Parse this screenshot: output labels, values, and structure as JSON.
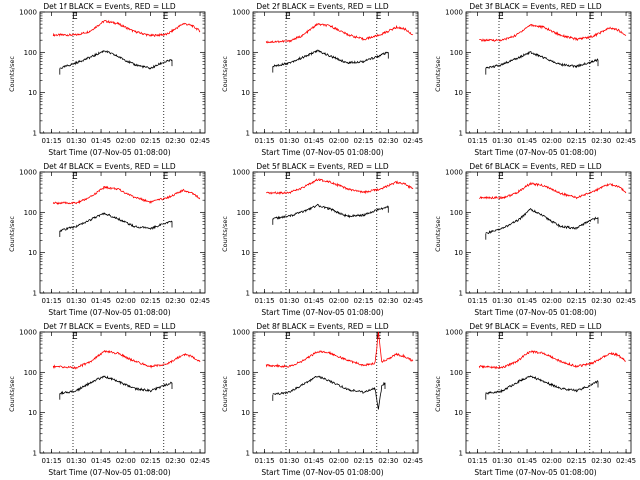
{
  "chart_data": [
    {
      "type": "line",
      "title": "Det 1f BLACK = Events, RED = LLD",
      "xlabel": "Start Time (07-Nov-05 01:08:00)",
      "ylabel": "Counts/sec",
      "yscale": "log",
      "ylim": [
        1,
        1000
      ],
      "x_ticks": [
        "01:15",
        "01:30",
        "01:45",
        "02:00",
        "02:15",
        "02:30",
        "02:45"
      ],
      "y_ticks": [
        "1",
        "10",
        "100",
        "1000"
      ],
      "markers": [
        "01:28",
        "02:23"
      ],
      "marker_label": "E",
      "series": [
        {
          "color": "#ff0000",
          "points": [
            [
              "01:16",
              270
            ],
            [
              "01:30",
              270
            ],
            [
              "01:38",
              330
            ],
            [
              "01:47",
              600
            ],
            [
              "01:55",
              520
            ],
            [
              "02:05",
              330
            ],
            [
              "02:15",
              260
            ],
            [
              "02:25",
              280
            ],
            [
              "02:35",
              520
            ],
            [
              "02:40",
              460
            ],
            [
              "02:45",
              340
            ]
          ]
        },
        {
          "color": "#000000",
          "points": [
            [
              "01:20",
              40
            ],
            [
              "01:30",
              55
            ],
            [
              "01:40",
              80
            ],
            [
              "01:47",
              110
            ],
            [
              "01:55",
              80
            ],
            [
              "02:05",
              50
            ],
            [
              "02:15",
              40
            ],
            [
              "02:22",
              55
            ],
            [
              "02:28",
              65
            ]
          ]
        }
      ]
    },
    {
      "type": "line",
      "title": "Det 2f BLACK = Events, RED = LLD",
      "xlabel": "Start Time (07-Nov-05 01:08:00)",
      "ylabel": "Counts/sec",
      "yscale": "log",
      "ylim": [
        1,
        1000
      ],
      "x_ticks": [
        "01:15",
        "01:30",
        "01:45",
        "02:00",
        "02:15",
        "02:30",
        "02:45"
      ],
      "y_ticks": [
        "1",
        "10",
        "100",
        "1000"
      ],
      "markers": [
        "01:28",
        "02:23"
      ],
      "marker_label": "E",
      "series": [
        {
          "color": "#ff0000",
          "points": [
            [
              "01:16",
              180
            ],
            [
              "01:30",
              190
            ],
            [
              "01:38",
              260
            ],
            [
              "01:47",
              500
            ],
            [
              "01:55",
              450
            ],
            [
              "02:05",
              280
            ],
            [
              "02:15",
              210
            ],
            [
              "02:25",
              270
            ],
            [
              "02:35",
              420
            ],
            [
              "02:40",
              380
            ],
            [
              "02:45",
              270
            ]
          ]
        },
        {
          "color": "#000000",
          "points": [
            [
              "01:20",
              45
            ],
            [
              "01:30",
              55
            ],
            [
              "01:40",
              80
            ],
            [
              "01:47",
              110
            ],
            [
              "01:55",
              80
            ],
            [
              "02:05",
              55
            ],
            [
              "02:15",
              60
            ],
            [
              "02:22",
              75
            ],
            [
              "02:30",
              100
            ]
          ]
        }
      ]
    },
    {
      "type": "line",
      "title": "Det 3f BLACK = Events, RED = LLD",
      "xlabel": "Start Time (07-Nov-05 01:08:00)",
      "ylabel": "Counts/sec",
      "yscale": "log",
      "ylim": [
        1,
        1000
      ],
      "x_ticks": [
        "01:15",
        "01:30",
        "01:45",
        "02:00",
        "02:15",
        "02:30",
        "02:45"
      ],
      "y_ticks": [
        "1",
        "10",
        "100",
        "1000"
      ],
      "markers": [
        "01:28",
        "02:23"
      ],
      "marker_label": "E",
      "series": [
        {
          "color": "#ff0000",
          "points": [
            [
              "01:16",
              200
            ],
            [
              "01:30",
              200
            ],
            [
              "01:38",
              260
            ],
            [
              "01:47",
              480
            ],
            [
              "01:55",
              420
            ],
            [
              "02:05",
              270
            ],
            [
              "02:15",
              210
            ],
            [
              "02:25",
              250
            ],
            [
              "02:35",
              400
            ],
            [
              "02:40",
              360
            ],
            [
              "02:45",
              260
            ]
          ]
        },
        {
          "color": "#000000",
          "points": [
            [
              "01:20",
              40
            ],
            [
              "01:30",
              50
            ],
            [
              "01:40",
              75
            ],
            [
              "01:47",
              100
            ],
            [
              "01:55",
              75
            ],
            [
              "02:05",
              50
            ],
            [
              "02:15",
              45
            ],
            [
              "02:22",
              55
            ],
            [
              "02:28",
              65
            ]
          ]
        }
      ]
    },
    {
      "type": "line",
      "title": "Det 4f BLACK = Events, RED = LLD",
      "xlabel": "Start Time (07-Nov-05 01:08:00)",
      "ylabel": "Counts/sec",
      "yscale": "log",
      "ylim": [
        1,
        1000
      ],
      "x_ticks": [
        "01:15",
        "01:30",
        "01:45",
        "02:00",
        "02:15",
        "02:30",
        "02:45"
      ],
      "y_ticks": [
        "1",
        "10",
        "100",
        "1000"
      ],
      "markers": [
        "01:28",
        "02:23"
      ],
      "marker_label": "E",
      "series": [
        {
          "color": "#ff0000",
          "points": [
            [
              "01:16",
              170
            ],
            [
              "01:30",
              170
            ],
            [
              "01:38",
              230
            ],
            [
              "01:47",
              420
            ],
            [
              "01:55",
              380
            ],
            [
              "02:05",
              240
            ],
            [
              "02:15",
              180
            ],
            [
              "02:25",
              230
            ],
            [
              "02:35",
              350
            ],
            [
              "02:40",
              310
            ],
            [
              "02:45",
              220
            ]
          ]
        },
        {
          "color": "#000000",
          "points": [
            [
              "01:20",
              35
            ],
            [
              "01:30",
              45
            ],
            [
              "01:40",
              70
            ],
            [
              "01:47",
              95
            ],
            [
              "01:55",
              70
            ],
            [
              "02:05",
              45
            ],
            [
              "02:15",
              40
            ],
            [
              "02:22",
              50
            ],
            [
              "02:28",
              60
            ]
          ]
        }
      ]
    },
    {
      "type": "line",
      "title": "Det 5f BLACK = Events, RED = LLD",
      "xlabel": "Start Time (07-Nov-05 01:08:00)",
      "ylabel": "Counts/sec",
      "yscale": "log",
      "ylim": [
        1,
        1000
      ],
      "x_ticks": [
        "01:15",
        "01:30",
        "01:45",
        "02:00",
        "02:15",
        "02:30",
        "02:45"
      ],
      "y_ticks": [
        "1",
        "10",
        "100",
        "1000"
      ],
      "markers": [
        "01:28",
        "02:23"
      ],
      "marker_label": "E",
      "series": [
        {
          "color": "#ff0000",
          "points": [
            [
              "01:16",
              300
            ],
            [
              "01:30",
              310
            ],
            [
              "01:38",
              400
            ],
            [
              "01:47",
              650
            ],
            [
              "01:55",
              570
            ],
            [
              "02:05",
              380
            ],
            [
              "02:15",
              310
            ],
            [
              "02:25",
              380
            ],
            [
              "02:35",
              560
            ],
            [
              "02:40",
              500
            ],
            [
              "02:45",
              380
            ]
          ]
        },
        {
          "color": "#000000",
          "points": [
            [
              "01:20",
              70
            ],
            [
              "01:30",
              80
            ],
            [
              "01:40",
              110
            ],
            [
              "01:47",
              150
            ],
            [
              "01:55",
              120
            ],
            [
              "02:05",
              80
            ],
            [
              "02:15",
              85
            ],
            [
              "02:22",
              110
            ],
            [
              "02:30",
              140
            ]
          ]
        }
      ]
    },
    {
      "type": "line",
      "title": "Det 6f BLACK = Events, RED = LLD",
      "xlabel": "Start Time (07-Nov-05 01:08:00)",
      "ylabel": "Counts/sec",
      "yscale": "log",
      "ylim": [
        1,
        1000
      ],
      "x_ticks": [
        "01:15",
        "01:30",
        "01:45",
        "02:00",
        "02:15",
        "02:30",
        "02:45"
      ],
      "y_ticks": [
        "1",
        "10",
        "100",
        "1000"
      ],
      "markers": [
        "01:28",
        "02:23"
      ],
      "marker_label": "E",
      "series": [
        {
          "color": "#ff0000",
          "points": [
            [
              "01:16",
              230
            ],
            [
              "01:30",
              230
            ],
            [
              "01:38",
              290
            ],
            [
              "01:47",
              520
            ],
            [
              "01:55",
              460
            ],
            [
              "02:05",
              300
            ],
            [
              "02:15",
              230
            ],
            [
              "02:25",
              330
            ],
            [
              "02:35",
              500
            ],
            [
              "02:40",
              440
            ],
            [
              "02:45",
              320
            ]
          ]
        },
        {
          "color": "#000000",
          "points": [
            [
              "01:20",
              30
            ],
            [
              "01:30",
              40
            ],
            [
              "01:40",
              65
            ],
            [
              "01:47",
              120
            ],
            [
              "01:55",
              80
            ],
            [
              "02:05",
              45
            ],
            [
              "02:15",
              40
            ],
            [
              "02:22",
              60
            ],
            [
              "02:28",
              75
            ]
          ]
        }
      ]
    },
    {
      "type": "line",
      "title": "Det 7f BLACK = Events, RED = LLD",
      "xlabel": "Start Time (07-Nov-05 01:08:00)",
      "ylabel": "Counts/sec",
      "yscale": "log",
      "ylim": [
        1,
        1000
      ],
      "x_ticks": [
        "01:15",
        "01:30",
        "01:45",
        "02:00",
        "02:15",
        "02:30",
        "02:45"
      ],
      "y_ticks": [
        "1",
        "10",
        "100",
        "1000"
      ],
      "markers": [
        "01:28",
        "02:23"
      ],
      "marker_label": "E",
      "series": [
        {
          "color": "#ff0000",
          "points": [
            [
              "01:16",
              140
            ],
            [
              "01:30",
              130
            ],
            [
              "01:38",
              180
            ],
            [
              "01:47",
              330
            ],
            [
              "01:55",
              300
            ],
            [
              "02:05",
              190
            ],
            [
              "02:15",
              140
            ],
            [
              "02:25",
              160
            ],
            [
              "02:35",
              280
            ],
            [
              "02:40",
              250
            ],
            [
              "02:45",
              180
            ]
          ]
        },
        {
          "color": "#000000",
          "points": [
            [
              "01:20",
              30
            ],
            [
              "01:30",
              35
            ],
            [
              "01:40",
              60
            ],
            [
              "01:47",
              80
            ],
            [
              "01:55",
              60
            ],
            [
              "02:05",
              40
            ],
            [
              "02:15",
              35
            ],
            [
              "02:22",
              45
            ],
            [
              "02:28",
              55
            ]
          ]
        }
      ]
    },
    {
      "type": "line",
      "title": "Det 8f BLACK = Events, RED = LLD",
      "xlabel": "Start Time (07-Nov-05 01:08:00)",
      "ylabel": "Counts/sec",
      "yscale": "log",
      "ylim": [
        1,
        1000
      ],
      "x_ticks": [
        "01:15",
        "01:30",
        "01:45",
        "02:00",
        "02:15",
        "02:30",
        "02:45"
      ],
      "y_ticks": [
        "1",
        "10",
        "100",
        "1000"
      ],
      "markers": [
        "01:28",
        "02:23"
      ],
      "marker_label": "E",
      "series": [
        {
          "color": "#ff0000",
          "points": [
            [
              "01:16",
              150
            ],
            [
              "01:30",
              140
            ],
            [
              "01:38",
              190
            ],
            [
              "01:47",
              330
            ],
            [
              "01:55",
              300
            ],
            [
              "02:05",
              200
            ],
            [
              "02:15",
              150
            ],
            [
              "02:22",
              170
            ],
            [
              "02:24",
              1000
            ],
            [
              "02:26",
              180
            ],
            [
              "02:35",
              280
            ],
            [
              "02:40",
              250
            ],
            [
              "02:45",
              190
            ]
          ]
        },
        {
          "color": "#000000",
          "points": [
            [
              "01:20",
              28
            ],
            [
              "01:30",
              32
            ],
            [
              "01:40",
              55
            ],
            [
              "01:47",
              80
            ],
            [
              "01:55",
              60
            ],
            [
              "02:05",
              38
            ],
            [
              "02:15",
              32
            ],
            [
              "02:22",
              40
            ],
            [
              "02:24",
              12
            ],
            [
              "02:26",
              45
            ],
            [
              "02:28",
              55
            ]
          ]
        }
      ]
    },
    {
      "type": "line",
      "title": "Det 9f BLACK = Events, RED = LLD",
      "xlabel": "Start Time (07-Nov-05 01:08:00)",
      "ylabel": "Counts/sec",
      "yscale": "log",
      "ylim": [
        1,
        1000
      ],
      "x_ticks": [
        "01:15",
        "01:30",
        "01:45",
        "02:00",
        "02:15",
        "02:30",
        "02:45"
      ],
      "y_ticks": [
        "1",
        "10",
        "100",
        "1000"
      ],
      "markers": [
        "01:28",
        "02:23"
      ],
      "marker_label": "E",
      "series": [
        {
          "color": "#ff0000",
          "points": [
            [
              "01:16",
              140
            ],
            [
              "01:30",
              130
            ],
            [
              "01:38",
              180
            ],
            [
              "01:47",
              330
            ],
            [
              "01:55",
              300
            ],
            [
              "02:05",
              190
            ],
            [
              "02:15",
              140
            ],
            [
              "02:25",
              170
            ],
            [
              "02:35",
              300
            ],
            [
              "02:40",
              270
            ],
            [
              "02:45",
              190
            ]
          ]
        },
        {
          "color": "#000000",
          "points": [
            [
              "01:20",
              30
            ],
            [
              "01:30",
              35
            ],
            [
              "01:40",
              60
            ],
            [
              "01:47",
              80
            ],
            [
              "01:55",
              60
            ],
            [
              "02:05",
              40
            ],
            [
              "02:15",
              35
            ],
            [
              "02:22",
              45
            ],
            [
              "02:28",
              60
            ]
          ]
        }
      ]
    }
  ]
}
